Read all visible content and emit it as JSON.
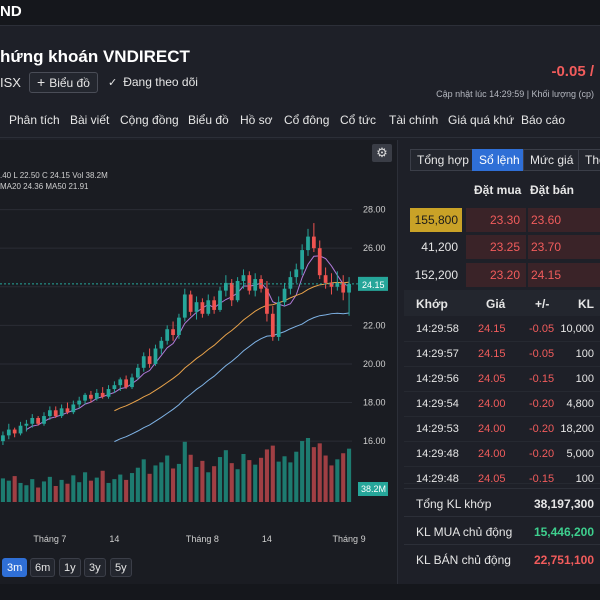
{
  "topbar": {
    "logo": "ND"
  },
  "header": {
    "company": "hứng khoán VNDIRECT",
    "exchange": "ISX",
    "chart_button": "Biểu đồ",
    "follow": "Đang theo dõi",
    "price_change": "-0.05 /",
    "updated": "Cập nhật lúc  14:29:59 | Khối lượng (cp)"
  },
  "nav": [
    "Phân tích",
    "Bài viết",
    "Cộng đồng",
    "Biểu đồ",
    "Hồ sơ",
    "Cổ đông",
    "Cổ tức",
    "Tài chính",
    "Giá quá khứ",
    "Báo cáo"
  ],
  "legend": {
    "ohlc": ".40  L 22.50  C 24.15  Vol 38.2M",
    "ma": "MA20 24.36  MA50 21.91"
  },
  "range_buttons": [
    "3m",
    "6m",
    "1y",
    "3y",
    "5y"
  ],
  "tabs": [
    "Tổng hợp",
    "Sổ lệnh",
    "Mức giá",
    "Thố"
  ],
  "orderbook": {
    "headers": {
      "bid": "Đặt mua",
      "ask": "Đặt bán"
    },
    "rows": [
      {
        "vol": "155,800",
        "bid": "23.30",
        "ask": "23.60"
      },
      {
        "vol": "41,200",
        "bid": "23.25",
        "ask": "23.70"
      },
      {
        "vol": "152,200",
        "bid": "23.20",
        "ask": "24.15"
      }
    ]
  },
  "trades": {
    "headers": {
      "time": "Khớp",
      "price": "Giá",
      "change": "+/-",
      "vol": "KL"
    },
    "rows": [
      {
        "time": "14:29:58",
        "price": "24.15",
        "change": "-0.05",
        "vol": "10,000"
      },
      {
        "time": "14:29:57",
        "price": "24.15",
        "change": "-0.05",
        "vol": "100"
      },
      {
        "time": "14:29:56",
        "price": "24.05",
        "change": "-0.15",
        "vol": "100"
      },
      {
        "time": "14:29:54",
        "price": "24.00",
        "change": "-0.20",
        "vol": "4,800"
      },
      {
        "time": "14:29:53",
        "price": "24.00",
        "change": "-0.20",
        "vol": "18,200"
      },
      {
        "time": "14:29:48",
        "price": "24.00",
        "change": "-0.20",
        "vol": "5,000"
      },
      {
        "time": "14:29:48",
        "price": "24.05",
        "change": "-0.15",
        "vol": "100"
      }
    ]
  },
  "summary": [
    {
      "label": "Tổng KL khớp",
      "value": "38,197,300",
      "color": "#e6e6e6"
    },
    {
      "label": "KL MUA chủ động",
      "value": "15,446,200",
      "color": "#3ecf8e"
    },
    {
      "label": "KL BÁN chủ động",
      "value": "22,751,100",
      "color": "#f25c5c"
    }
  ],
  "colors": {
    "up": "#26a69a",
    "down": "#ef5350",
    "ma20": "#e8a24a",
    "ma50": "#7fb3e6",
    "ma_short": "#b07ad9",
    "accent": "#2f6fd6"
  },
  "chart_data": {
    "type": "candlestick",
    "y_ticks": [
      "28.00",
      "26.00",
      "24.00",
      "22.00",
      "20.00",
      "18.00",
      "16.00"
    ],
    "ylim": [
      15.8,
      28.6
    ],
    "x_labels": [
      "Tháng 7",
      "14",
      "Tháng 8",
      "14",
      "Tháng 9"
    ],
    "x_label_index": [
      8,
      19,
      34,
      45,
      59
    ],
    "last_price_label": "24.15",
    "volume_label": "38.2M",
    "candles": [
      [
        16.0,
        16.5,
        15.8,
        16.3
      ],
      [
        16.3,
        16.9,
        16.1,
        16.6
      ],
      [
        16.6,
        16.7,
        16.2,
        16.4
      ],
      [
        16.4,
        17.0,
        16.3,
        16.8
      ],
      [
        16.8,
        17.1,
        16.5,
        16.9
      ],
      [
        16.9,
        17.4,
        16.7,
        17.2
      ],
      [
        17.2,
        17.3,
        16.8,
        16.9
      ],
      [
        16.9,
        17.5,
        16.8,
        17.3
      ],
      [
        17.3,
        17.8,
        17.1,
        17.6
      ],
      [
        17.6,
        17.8,
        17.2,
        17.3
      ],
      [
        17.3,
        17.9,
        17.2,
        17.7
      ],
      [
        17.7,
        18.0,
        17.4,
        17.5
      ],
      [
        17.5,
        18.1,
        17.4,
        17.9
      ],
      [
        17.9,
        18.3,
        17.7,
        18.1
      ],
      [
        18.1,
        18.5,
        17.9,
        18.4
      ],
      [
        18.4,
        18.6,
        18.0,
        18.2
      ],
      [
        18.2,
        18.7,
        18.1,
        18.5
      ],
      [
        18.5,
        18.8,
        18.2,
        18.3
      ],
      [
        18.3,
        18.9,
        18.2,
        18.7
      ],
      [
        18.7,
        19.1,
        18.5,
        18.9
      ],
      [
        18.9,
        19.3,
        18.6,
        19.2
      ],
      [
        19.2,
        19.4,
        18.7,
        18.8
      ],
      [
        18.8,
        19.5,
        18.7,
        19.3
      ],
      [
        19.3,
        20.0,
        19.2,
        19.8
      ],
      [
        19.8,
        20.6,
        19.6,
        20.4
      ],
      [
        20.4,
        20.8,
        19.8,
        20.0
      ],
      [
        20.0,
        21.0,
        19.9,
        20.8
      ],
      [
        20.8,
        21.4,
        20.5,
        21.2
      ],
      [
        21.2,
        22.0,
        21.0,
        21.8
      ],
      [
        21.8,
        22.2,
        21.2,
        21.5
      ],
      [
        21.5,
        22.6,
        21.3,
        22.4
      ],
      [
        22.4,
        23.9,
        22.2,
        23.6
      ],
      [
        23.6,
        23.8,
        22.5,
        22.7
      ],
      [
        22.7,
        23.5,
        22.3,
        23.2
      ],
      [
        23.2,
        23.4,
        22.4,
        22.6
      ],
      [
        22.6,
        23.6,
        22.5,
        23.3
      ],
      [
        23.3,
        23.5,
        22.6,
        22.8
      ],
      [
        22.8,
        24.0,
        22.7,
        23.8
      ],
      [
        23.8,
        24.6,
        23.5,
        24.2
      ],
      [
        24.2,
        24.4,
        23.0,
        23.3
      ],
      [
        23.3,
        24.5,
        23.2,
        24.3
      ],
      [
        24.3,
        24.9,
        23.9,
        24.6
      ],
      [
        24.6,
        24.8,
        23.6,
        23.8
      ],
      [
        23.8,
        24.7,
        23.5,
        24.4
      ],
      [
        24.4,
        24.6,
        23.7,
        23.9
      ],
      [
        23.9,
        24.3,
        22.2,
        22.6
      ],
      [
        22.6,
        23.0,
        21.2,
        21.4
      ],
      [
        21.4,
        23.5,
        21.2,
        23.2
      ],
      [
        23.2,
        24.2,
        23.0,
        23.9
      ],
      [
        23.9,
        24.8,
        23.6,
        24.5
      ],
      [
        24.5,
        25.2,
        24.2,
        24.9
      ],
      [
        24.9,
        26.2,
        24.6,
        25.9
      ],
      [
        25.9,
        27.0,
        25.6,
        26.6
      ],
      [
        26.6,
        27.3,
        25.8,
        26.0
      ],
      [
        26.0,
        26.4,
        24.4,
        24.6
      ],
      [
        24.6,
        25.0,
        23.9,
        24.2
      ],
      [
        24.2,
        24.7,
        23.6,
        24.0
      ],
      [
        24.0,
        24.8,
        23.8,
        24.2
      ],
      [
        24.2,
        24.6,
        23.3,
        23.7
      ],
      [
        23.7,
        24.5,
        22.5,
        24.15
      ]
    ],
    "volumes": [
      3.1,
      2.8,
      3.4,
      2.5,
      2.2,
      3.0,
      1.9,
      2.7,
      3.3,
      2.1,
      2.9,
      2.4,
      3.5,
      2.6,
      3.9,
      2.8,
      3.2,
      4.1,
      2.5,
      3.0,
      3.6,
      2.9,
      3.8,
      4.5,
      5.6,
      3.7,
      4.8,
      5.2,
      6.1,
      4.4,
      5.0,
      7.9,
      6.2,
      4.6,
      5.4,
      3.9,
      4.7,
      5.9,
      6.8,
      5.1,
      4.3,
      6.3,
      5.5,
      4.9,
      5.8,
      6.9,
      7.4,
      5.3,
      6.0,
      5.2,
      6.6,
      8.0,
      8.4,
      7.2,
      7.7,
      6.1,
      4.8,
      5.6,
      6.4,
      7.0
    ]
  }
}
